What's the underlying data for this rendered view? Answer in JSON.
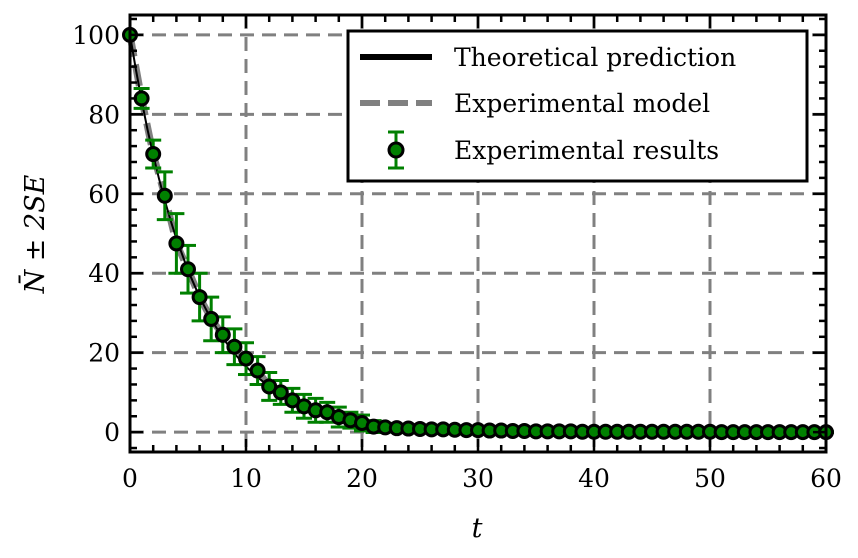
{
  "chart_data": {
    "type": "scatter",
    "xlabel": "t",
    "ylabel": "N̄ ± 2SE",
    "xlim": [
      0,
      60
    ],
    "ylim": [
      -5,
      105
    ],
    "x_ticks": [
      0,
      10,
      20,
      30,
      40,
      50,
      60
    ],
    "y_ticks": [
      0,
      20,
      40,
      60,
      80,
      100
    ],
    "x_tick_labels": [
      "0",
      "10",
      "20",
      "30",
      "40",
      "50",
      "60"
    ],
    "y_tick_labels": [
      "0",
      "20",
      "40",
      "60",
      "80",
      "100"
    ],
    "grid": true,
    "legend_position": "top-right",
    "colors": {
      "theory": "#000000",
      "model": "#808080",
      "points_fill": "#008000",
      "errorbar": "#008000",
      "point_edge": "#000000",
      "grid": "#808080"
    },
    "series": [
      {
        "name": "Theoretical prediction",
        "kind": "line",
        "x": [
          0,
          0.5,
          1,
          1.5,
          2,
          2.5,
          3,
          3.5,
          4,
          5,
          6,
          7,
          8,
          9,
          10,
          11,
          12,
          13,
          14,
          15,
          16,
          17,
          18,
          19,
          20,
          22,
          24,
          26,
          28,
          30,
          35,
          40,
          45,
          50,
          55,
          60
        ],
        "y": [
          100,
          91.4,
          83.5,
          76.3,
          69.8,
          63.8,
          58.3,
          53.3,
          48.7,
          40.7,
          34.0,
          28.4,
          23.7,
          19.8,
          16.5,
          13.8,
          11.5,
          9.6,
          8.0,
          6.7,
          5.6,
          4.7,
          3.9,
          3.3,
          2.7,
          1.9,
          1.3,
          0.9,
          0.6,
          0.4,
          0.2,
          0.1,
          0.05,
          0.02,
          0.01,
          0.0
        ]
      },
      {
        "name": "Experimental model",
        "kind": "dashed-line",
        "x": [
          0,
          1,
          2,
          3,
          4,
          5,
          6,
          7,
          8,
          9,
          10,
          11,
          12,
          13,
          14,
          15,
          16,
          17,
          18,
          19,
          20,
          21,
          22,
          23,
          24,
          25,
          26,
          27,
          28,
          29,
          30,
          31,
          32,
          33,
          34,
          35,
          36,
          37,
          38,
          39,
          40,
          41,
          42,
          43,
          44,
          45,
          46,
          47,
          48,
          49,
          50,
          51,
          52,
          53,
          54,
          55,
          56,
          57,
          58,
          59,
          60
        ],
        "y": [
          100,
          84,
          70,
          59.5,
          47.5,
          41,
          34,
          28.5,
          24.5,
          21.5,
          18.5,
          15.5,
          11.5,
          10,
          8,
          6.5,
          5.5,
          5,
          3.8,
          3,
          2.3,
          1.4,
          1.2,
          1,
          0.9,
          0.8,
          0.7,
          0.7,
          0.6,
          0.5,
          0.5,
          0.4,
          0.4,
          0.3,
          0.3,
          0.2,
          0.2,
          0.2,
          0.2,
          0.1,
          0.1,
          0.1,
          0.1,
          0.1,
          0.1,
          0.1,
          0.1,
          0.1,
          0.1,
          0.1,
          0.1,
          0,
          0,
          0,
          0,
          0,
          0,
          0,
          0,
          0,
          0
        ]
      },
      {
        "name": "Experimental results",
        "kind": "errorbar",
        "x": [
          0,
          1,
          2,
          3,
          4,
          5,
          6,
          7,
          8,
          9,
          10,
          11,
          12,
          13,
          14,
          15,
          16,
          17,
          18,
          19,
          20,
          21,
          22,
          23,
          24,
          25,
          26,
          27,
          28,
          29,
          30,
          31,
          32,
          33,
          34,
          35,
          36,
          37,
          38,
          39,
          40,
          41,
          42,
          43,
          44,
          45,
          46,
          47,
          48,
          49,
          50,
          51,
          52,
          53,
          54,
          55,
          56,
          57,
          58,
          59,
          60
        ],
        "y": [
          100,
          84,
          70,
          59.5,
          47.5,
          41,
          34,
          28.5,
          24.5,
          21.5,
          18.5,
          15.5,
          11.5,
          10,
          8,
          6.5,
          5.5,
          5,
          3.8,
          3,
          2.3,
          1.4,
          1.2,
          1,
          0.9,
          0.8,
          0.7,
          0.7,
          0.6,
          0.5,
          0.5,
          0.4,
          0.4,
          0.3,
          0.3,
          0.2,
          0.2,
          0.2,
          0.2,
          0.1,
          0.1,
          0.1,
          0.1,
          0.1,
          0.1,
          0.1,
          0.1,
          0.1,
          0.1,
          0.1,
          0.1,
          0,
          0,
          0,
          0,
          0,
          0,
          0,
          0,
          0,
          0
        ],
        "yerr": [
          0,
          2.5,
          3.5,
          6,
          7.5,
          6,
          6,
          5.5,
          4.5,
          4.5,
          4,
          3.5,
          3.5,
          3,
          3,
          3,
          3,
          2.5,
          2.5,
          2,
          2,
          1.5,
          1,
          1,
          0.8,
          0.8,
          0.7,
          0.7,
          0.6,
          0.6,
          0.5,
          0.5,
          0.5,
          0.4,
          0.4,
          0.3,
          0.3,
          0.3,
          0.3,
          0.2,
          0.2,
          0.2,
          0.2,
          0.2,
          0.2,
          0.2,
          0.2,
          0.2,
          0.2,
          0.2,
          0.2,
          0.1,
          0.1,
          0.1,
          0.1,
          0.1,
          0.1,
          0.1,
          0.1,
          0.1,
          0.1
        ]
      }
    ]
  }
}
